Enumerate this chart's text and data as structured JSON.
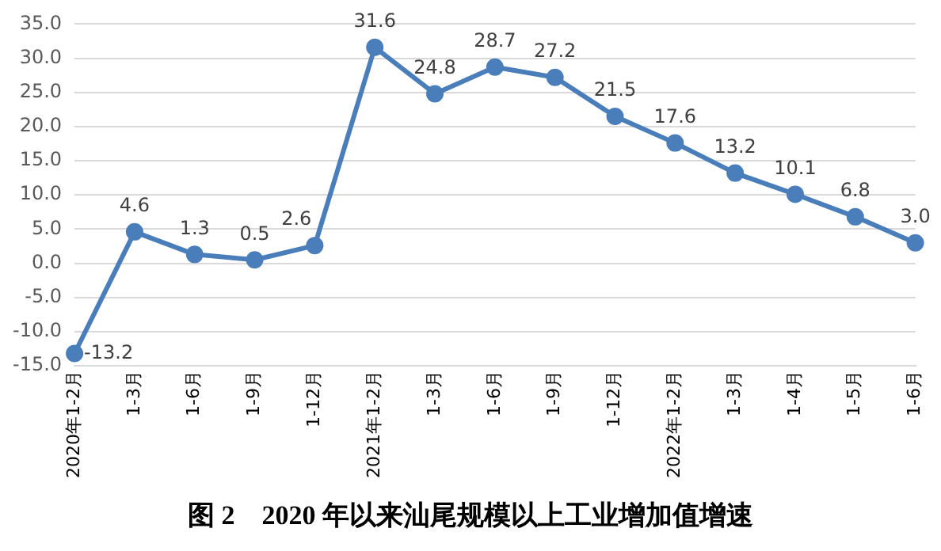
{
  "chart_data": {
    "type": "line",
    "title": "图 2    2020 年以来汕尾规模以上工业增加值增速",
    "categories": [
      "2020年1-2月",
      "1-3月",
      "1-6月",
      "1-9月",
      "1-12月",
      "2021年1-2月",
      "1-3月",
      "1-6月",
      "1-9月",
      "1-12月",
      "2022年1-2月",
      "1-3月",
      "1-4月",
      "1-5月",
      "1-6月"
    ],
    "series": [
      {
        "color": "#4a7ebb",
        "values": [
          -13.2,
          4.6,
          1.3,
          0.5,
          2.6,
          31.6,
          24.8,
          28.7,
          27.2,
          21.5,
          17.6,
          13.2,
          10.1,
          6.8,
          3.0
        ],
        "value_labels": [
          "-13.2",
          "4.6",
          "1.3",
          "0.5",
          "2.6",
          "31.6",
          "24.8",
          "28.7",
          "27.2",
          "21.5",
          "17.6",
          "13.2",
          "10.1",
          "6.8",
          "3.0"
        ]
      }
    ],
    "ylim": [
      -15,
      35
    ],
    "yticks": [
      {
        "value": -15,
        "label": "-15.0"
      },
      {
        "value": -10,
        "label": "-10.0"
      },
      {
        "value": -5,
        "label": "-5.0"
      },
      {
        "value": 0,
        "label": "0.0"
      },
      {
        "value": 5,
        "label": "5.0"
      },
      {
        "value": 10,
        "label": "10.0"
      },
      {
        "value": 15,
        "label": "15.0"
      },
      {
        "value": 20,
        "label": "20.0"
      },
      {
        "value": 25,
        "label": "25.0"
      },
      {
        "value": 30,
        "label": "30.0"
      },
      {
        "value": 35,
        "label": "35.0"
      }
    ],
    "grid": "y",
    "legend": false,
    "marker": "circle",
    "line_style": "solid"
  }
}
